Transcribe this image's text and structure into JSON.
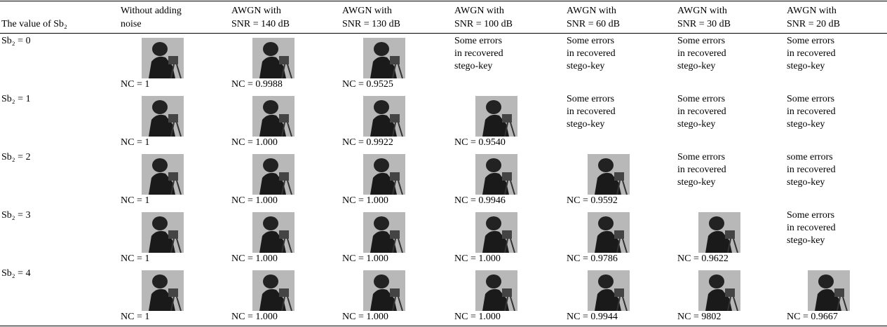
{
  "table": {
    "header": [
      [
        "The value of Sb₂"
      ],
      [
        "Without adding",
        "noise"
      ],
      [
        "AWGN with",
        "SNR = 140 dB"
      ],
      [
        "AWGN with",
        "SNR = 130 dB"
      ],
      [
        "AWGN with",
        "SNR = 100 dB"
      ],
      [
        "AWGN with",
        "SNR = 60 dB"
      ],
      [
        "AWGN with",
        "SNR = 30 dB"
      ],
      [
        "AWGN with",
        "SNR = 20 dB"
      ]
    ],
    "rows": [
      {
        "label": "Sb₂ = 0",
        "cells": [
          {
            "caption": "NC = 1"
          },
          {
            "caption": "NC = 0.9988"
          },
          {
            "caption": "NC = 0.9525"
          },
          {
            "text": [
              "Some errors",
              "in recovered",
              "stego-key"
            ]
          },
          {
            "text": [
              "Some errors",
              "in recovered",
              "stego-key"
            ]
          },
          {
            "text": [
              "Some errors",
              "in recovered",
              "stego-key"
            ]
          },
          {
            "text": [
              "Some errors",
              "in recovered",
              "stego-key"
            ]
          }
        ]
      },
      {
        "label": "Sb₂ = 1",
        "cells": [
          {
            "caption": "NC = 1"
          },
          {
            "caption": "NC = 1.000"
          },
          {
            "caption": "NC = 0.9922"
          },
          {
            "caption": "NC = 0.9540"
          },
          {
            "text": [
              "Some errors",
              "in recovered",
              "stego-key"
            ]
          },
          {
            "text": [
              "Some errors",
              "in recovered",
              "stego-key"
            ]
          },
          {
            "text": [
              "Some errors",
              "in recovered",
              "stego-key"
            ]
          }
        ]
      },
      {
        "label": "Sb₂ = 2",
        "cells": [
          {
            "caption": "NC = 1"
          },
          {
            "caption": "NC = 1.000"
          },
          {
            "caption": "NC = 1.000"
          },
          {
            "caption": "NC = 0.9946"
          },
          {
            "caption": "NC = 0.9592"
          },
          {
            "text": [
              "Some errors",
              "in recovered",
              "stego-key"
            ]
          },
          {
            "text": [
              "some errors",
              "in recovered",
              "stego-key"
            ]
          }
        ]
      },
      {
        "label": "Sb₂ = 3",
        "cells": [
          {
            "caption": "NC = 1"
          },
          {
            "caption": "NC = 1.000"
          },
          {
            "caption": "NC = 1.000"
          },
          {
            "caption": "NC = 1.000"
          },
          {
            "caption": "NC = 0.9786"
          },
          {
            "caption": "NC = 0.9622"
          },
          {
            "text": [
              "Some errors",
              "in recovered",
              "stego-key"
            ]
          }
        ]
      },
      {
        "label": "Sb₂ = 4",
        "cells": [
          {
            "caption": "NC = 1"
          },
          {
            "caption": "NC = 1.000"
          },
          {
            "caption": "NC = 1.000"
          },
          {
            "caption": "NC = 1.000"
          },
          {
            "caption": "NC = 0.9944"
          },
          {
            "caption": "NC = 9802"
          },
          {
            "caption": "NC = 0.9667"
          }
        ]
      }
    ]
  }
}
